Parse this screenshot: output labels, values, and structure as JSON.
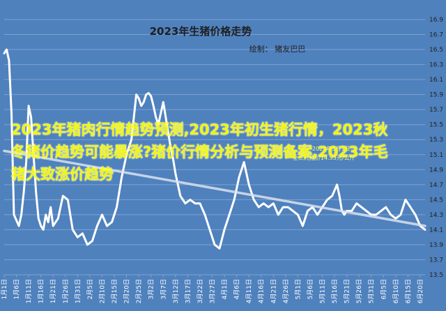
{
  "chart_data": {
    "type": "line",
    "title": "2023年生猪价格走势",
    "subtitle": "绘制：  猪友巴巴",
    "xlabel": "",
    "ylabel": "",
    "ylim": [
      13.5,
      16.9
    ],
    "yticks": [
      "13.5",
      "13.7",
      "13.9",
      "14.1",
      "14.3",
      "14.5",
      "14.7",
      "14.9",
      "15.1",
      "15.3",
      "15.5",
      "15.7",
      "15.9",
      "16.1",
      "16.3",
      "16.5",
      "16.7",
      "16.9"
    ],
    "grid": true,
    "x_tick_labels": [
      "1月1日",
      "1月6日",
      "1月11日",
      "1月16日",
      "1月21日",
      "1月26日",
      "1月31日",
      "2月5日",
      "2月10日",
      "2月15日",
      "2月20日",
      "2月25日",
      "3月2日",
      "3月7日",
      "3月12日",
      "3月17日",
      "3月22日",
      "3月27日",
      "4月1日",
      "4月6日",
      "4月11日",
      "4月16日",
      "4月21日",
      "4月26日",
      "5月1日",
      "5月6日",
      "5月11日",
      "5月16日",
      "5月21日",
      "5月26日",
      "5月31日",
      "6月5日",
      "6月10日",
      "6月15日",
      "6月20日"
    ],
    "series": [
      {
        "name": "",
        "color": "#ffffff",
        "x": [
          0,
          1,
          2,
          3,
          4,
          6,
          7,
          8,
          9,
          10,
          11,
          12,
          13,
          14,
          15,
          16,
          17,
          18,
          19,
          20,
          22,
          24,
          26,
          28,
          30,
          32,
          34,
          36,
          38,
          40,
          42,
          44,
          46,
          48,
          50,
          52,
          54,
          55,
          56,
          57,
          58,
          59,
          60,
          61,
          62,
          63,
          64,
          65,
          66,
          67,
          68,
          69,
          70,
          71,
          72,
          74,
          76,
          78,
          80,
          82,
          84,
          86,
          88,
          90,
          92,
          94,
          96,
          98,
          100,
          102,
          104,
          106,
          108,
          110,
          112,
          114,
          116,
          118,
          120,
          122,
          124,
          126,
          128,
          130,
          132,
          134,
          136,
          137,
          138,
          139,
          140,
          142,
          144,
          146,
          148,
          150,
          152,
          154,
          156,
          158,
          160,
          162,
          164,
          166,
          168,
          170,
          172
        ],
        "y": [
          16.45,
          16.5,
          16.35,
          15.65,
          14.3,
          14.15,
          14.3,
          14.6,
          15.0,
          15.75,
          15.6,
          15.1,
          14.6,
          14.25,
          14.15,
          14.1,
          14.3,
          14.2,
          14.4,
          14.15,
          14.25,
          14.55,
          14.5,
          14.1,
          14.0,
          14.05,
          13.9,
          13.95,
          14.15,
          14.3,
          14.15,
          14.2,
          14.4,
          14.8,
          15.1,
          15.3,
          15.9,
          15.85,
          15.75,
          15.8,
          15.9,
          15.92,
          15.88,
          15.75,
          15.6,
          15.5,
          15.65,
          15.8,
          15.6,
          15.4,
          15.2,
          15.05,
          14.85,
          14.7,
          14.55,
          14.45,
          14.5,
          14.45,
          14.45,
          14.3,
          14.1,
          13.9,
          13.85,
          14.1,
          14.3,
          14.5,
          14.8,
          15.0,
          14.7,
          14.5,
          14.4,
          14.45,
          14.4,
          14.45,
          14.3,
          14.4,
          14.4,
          14.35,
          14.3,
          14.15,
          14.35,
          14.4,
          14.3,
          14.4,
          14.5,
          14.55,
          14.7,
          14.55,
          14.35,
          14.3,
          14.35,
          14.35,
          14.45,
          14.4,
          14.35,
          14.3,
          14.3,
          14.35,
          14.4,
          14.3,
          14.25,
          14.3,
          14.5,
          14.4,
          14.3,
          14.15,
          14.1
        ]
      },
      {
        "name": "",
        "color": "#d9e2ee",
        "x": [
          0,
          172
        ],
        "y": [
          15.15,
          14.15
        ]
      }
    ],
    "annotation_lines": [
      "2023年5月1日",
      "全三元猪价14.93元/公斤"
    ],
    "overlay_text": "2023年猪肉行情趋势预测,2023年初生猪行情，2023秋冬猪价趋势可能暴涨?猪价行情分析与预测备案,2023年毛猪大致涨价趋势"
  },
  "colors": {
    "background": "#4f81bd",
    "grid": "#7ea3d1",
    "line": "#ffffff",
    "trend": "#d9e2ee"
  }
}
